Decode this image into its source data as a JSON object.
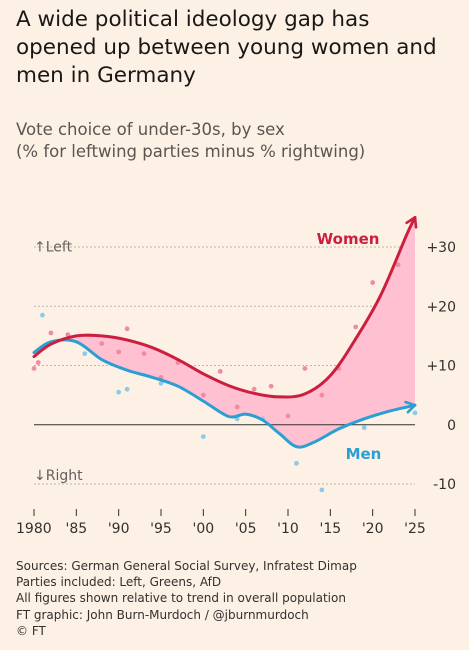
{
  "title": "A wide political ideology gap has opened up between young women and men in Germany",
  "subtitle_lines": [
    "Vote choice of under-30s, by sex",
    "(% for leftwing parties minus % rightwing)"
  ],
  "footer": {
    "sources": "Sources: German General Social Survey, Infratest Dimap",
    "parties": "Parties included: Left, Greens, AfD",
    "relative": "All figures shown relative to trend in overall population",
    "credit": "FT graphic: John Burn-Murdoch / @jburnmurdoch",
    "copyright": "© FT"
  },
  "chart_data": {
    "type": "line",
    "xlim": [
      1980,
      2025
    ],
    "ylim": [
      -10,
      30
    ],
    "x_ticks": [
      1980,
      1985,
      1990,
      1995,
      2000,
      2005,
      2010,
      2015,
      2020,
      2025
    ],
    "x_tick_labels": [
      "1980",
      "'85",
      "'90",
      "'95",
      "'00",
      "'05",
      "'10",
      "'15",
      "'20",
      "'25"
    ],
    "y_ticks": [
      -10,
      0,
      10,
      20,
      30
    ],
    "y_tick_labels": [
      "-10",
      "0",
      "+10",
      "+20",
      "+30"
    ],
    "axis_annotations": {
      "up": "Left",
      "down": "Right"
    },
    "gap_fill_color": "#ffc0d2",
    "series": [
      {
        "name": "Women",
        "color": "#cc1f3f",
        "trend": [
          [
            1980,
            11.5
          ],
          [
            1982,
            13.6
          ],
          [
            1985,
            15
          ],
          [
            1988,
            15
          ],
          [
            1991,
            14.3
          ],
          [
            1994,
            13
          ],
          [
            1997,
            11
          ],
          [
            2000,
            8.6
          ],
          [
            2003,
            6.6
          ],
          [
            2006,
            5.3
          ],
          [
            2009,
            4.7
          ],
          [
            2012,
            5.2
          ],
          [
            2015,
            8.3
          ],
          [
            2018,
            14.5
          ],
          [
            2021,
            22
          ],
          [
            2024,
            32
          ],
          [
            2025,
            35
          ]
        ],
        "points": [
          [
            1980,
            9.5
          ],
          [
            1980.5,
            10.5
          ],
          [
            1982,
            15.5
          ],
          [
            1984,
            15.2
          ],
          [
            1988,
            13.7
          ],
          [
            1990,
            12.3
          ],
          [
            1991,
            16.2
          ],
          [
            1993,
            12
          ],
          [
            1995,
            8
          ],
          [
            1997,
            10.5
          ],
          [
            2000,
            5
          ],
          [
            2002,
            9
          ],
          [
            2004,
            3
          ],
          [
            2006,
            6
          ],
          [
            2008,
            6.5
          ],
          [
            2010,
            1.5
          ],
          [
            2012,
            9.5
          ],
          [
            2014,
            5
          ],
          [
            2016,
            9.5
          ],
          [
            2018,
            16.5
          ],
          [
            2020,
            24
          ],
          [
            2023,
            27
          ]
        ]
      },
      {
        "name": "Men",
        "color": "#2b9fd4",
        "trend": [
          [
            1980,
            12.2
          ],
          [
            1982,
            14
          ],
          [
            1985,
            14
          ],
          [
            1988,
            11
          ],
          [
            1991,
            9.2
          ],
          [
            1994,
            8
          ],
          [
            1997,
            6.5
          ],
          [
            2000,
            4
          ],
          [
            2003,
            1.4
          ],
          [
            2005,
            1.8
          ],
          [
            2007,
            0.8
          ],
          [
            2009,
            -1.5
          ],
          [
            2011,
            -3.7
          ],
          [
            2013,
            -3
          ],
          [
            2016,
            -0.7
          ],
          [
            2019,
            1
          ],
          [
            2022,
            2.3
          ],
          [
            2025,
            3.3
          ]
        ],
        "points": [
          [
            1981,
            18.5
          ],
          [
            1986,
            12
          ],
          [
            1990,
            5.5
          ],
          [
            1991,
            6
          ],
          [
            1995,
            7
          ],
          [
            2000,
            -2
          ],
          [
            2004,
            1
          ],
          [
            2007,
            1
          ],
          [
            2011,
            -6.5
          ],
          [
            2014,
            -11
          ],
          [
            2019,
            -0.5
          ],
          [
            2025,
            2
          ]
        ]
      }
    ]
  }
}
